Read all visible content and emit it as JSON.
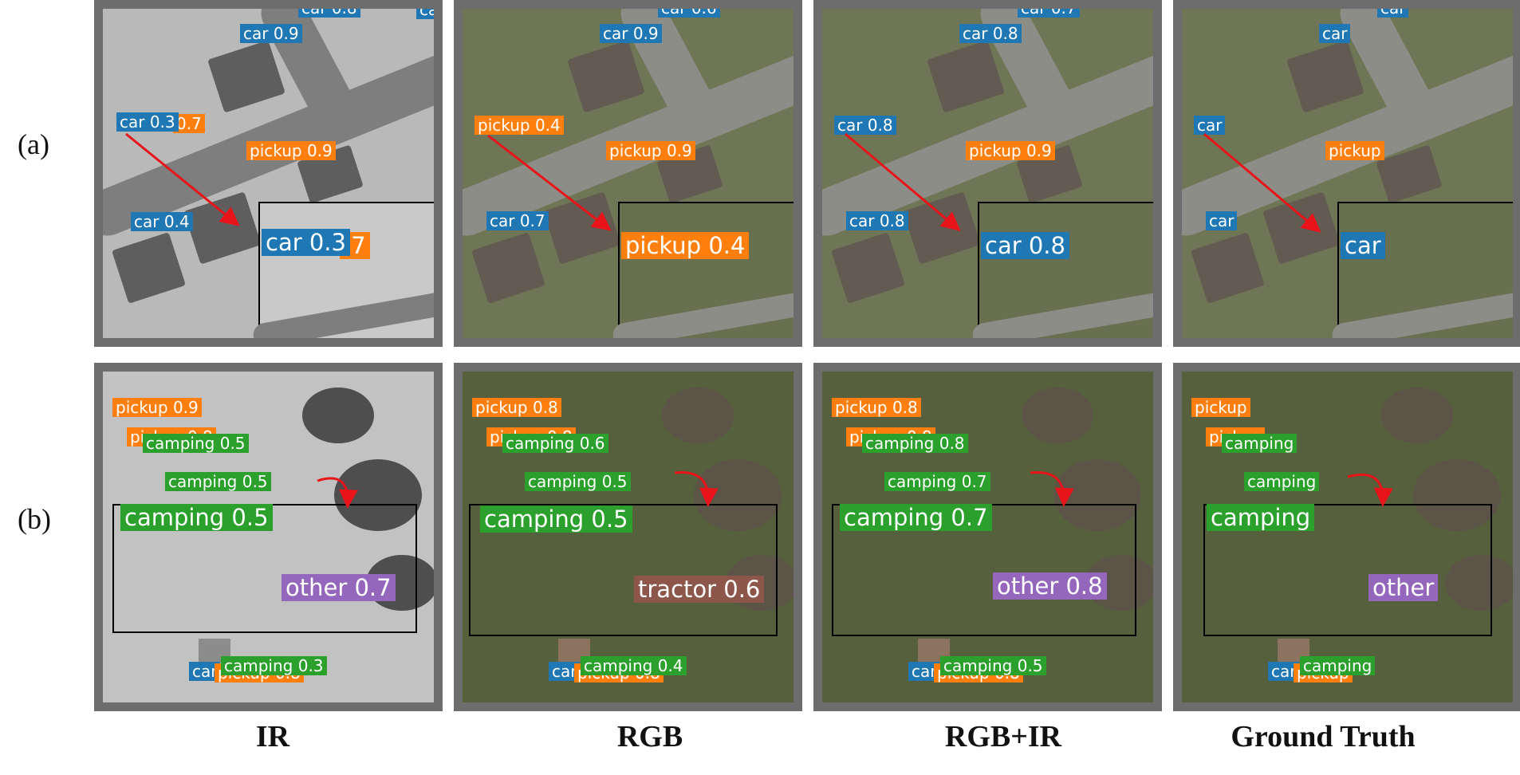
{
  "row_labels": {
    "a": "(a)",
    "b": "(b)"
  },
  "column_labels": [
    "IR",
    "RGB",
    "RGB+IR",
    "Ground Truth"
  ],
  "colors": {
    "car": "#1f77b4",
    "pickup": "#ff7f0e",
    "camping": "#2ca02c",
    "other": "#9467bd",
    "tractor": "#8c564b",
    "arrow": "#e8141a",
    "inset_border": "#000000",
    "panel_frame": "#6d6d6d"
  },
  "row_a": {
    "ir": {
      "top_car_1": "car 0.8",
      "top_car_2": "car",
      "car_1": "car 0.9",
      "car_2": "car 0.3",
      "pickup_under": "0.7",
      "pickup": "pickup 0.9",
      "car_3": "car 0.4",
      "inset_big_car": "car 0.3",
      "inset_under": ".7"
    },
    "rgb": {
      "top_car_1": "car 0.6",
      "car_1": "car 0.9",
      "pickup_1": "pickup 0.4",
      "pickup_2": "pickup 0.9",
      "car_3": "car 0.7",
      "inset_big": "pickup 0.4"
    },
    "fused": {
      "top_car_1": "car 0.7",
      "car_1": "car 0.8",
      "car_2": "car 0.8",
      "pickup": "pickup 0.9",
      "car_3": "car 0.8",
      "inset_big": "car 0.8"
    },
    "gt": {
      "top_car_1": "car",
      "car_1": "car",
      "car_2": "car",
      "pickup": "pickup",
      "car_3": "car",
      "inset_big": "car"
    }
  },
  "row_b": {
    "ir": {
      "pickup_1": "pickup 0.9",
      "pickup_2": "pickup 0.8",
      "camping_1": "camping 0.5",
      "camping_2": "camping 0.5",
      "camping_big": "camping 0.5",
      "other_big": "other 0.7",
      "car": "car",
      "pickup_bottom": "pickup 0.8",
      "camping_bottom": "camping 0.3"
    },
    "rgb": {
      "pickup_1": "pickup 0.8",
      "pickup_2": "pickup 0.8",
      "camping_1": "camping 0.6",
      "camping_2": "camping 0.5",
      "camping_big": "camping 0.5",
      "tractor_big": "tractor 0.6",
      "car": "car",
      "pickup_bottom": "pickup 0.8",
      "camping_bottom": "camping 0.4"
    },
    "fused": {
      "pickup_1": "pickup 0.8",
      "pickup_2": "pickup 0.8",
      "camping_1": "camping 0.8",
      "camping_2": "camping 0.7",
      "camping_big": "camping 0.7",
      "other_big": "other 0.8",
      "car": "car",
      "pickup_bottom": "pickup 0.8",
      "camping_bottom": "camping 0.5"
    },
    "gt": {
      "pickup_1": "pickup",
      "pickup_2": "pickup",
      "camping_1": "camping",
      "camping_2": "camping",
      "camping_big": "camping",
      "other_big": "other",
      "car": "car",
      "pickup_bottom": "pickup",
      "camping_bottom": "camping"
    }
  }
}
